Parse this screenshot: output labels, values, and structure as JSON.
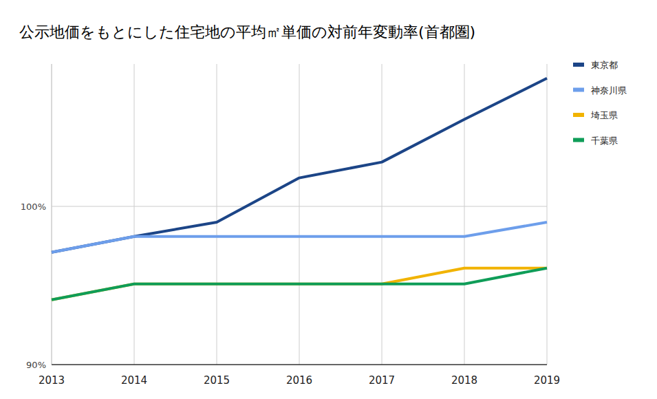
{
  "chart_data": {
    "type": "line",
    "title": "公示地価をもとにした住宅地の平均㎡単価の対前年変動率(首都圏)",
    "categories": [
      "2013",
      "2014",
      "2015",
      "2016",
      "2017",
      "2018",
      "2019"
    ],
    "series": [
      {
        "name": "東京都",
        "color": "#1c4587",
        "values": [
          97.1,
          98.1,
          99.0,
          101.8,
          102.8,
          105.5,
          108.1
        ]
      },
      {
        "name": "神奈川県",
        "color": "#6d9eeb",
        "values": [
          97.1,
          98.1,
          98.1,
          98.1,
          98.1,
          98.1,
          99.0
        ]
      },
      {
        "name": "埼玉県",
        "color": "#f1b300",
        "values": [
          94.1,
          95.1,
          95.1,
          95.1,
          95.1,
          96.1,
          96.1
        ]
      },
      {
        "name": "千葉県",
        "color": "#0f9d58",
        "values": [
          94.1,
          95.1,
          95.1,
          95.1,
          95.1,
          95.1,
          96.1
        ]
      }
    ],
    "ylim": [
      90,
      109
    ],
    "yticks": [
      {
        "value": 90,
        "label": "90%"
      },
      {
        "value": 100,
        "label": "100%"
      }
    ],
    "grid": true,
    "legend": "right"
  }
}
